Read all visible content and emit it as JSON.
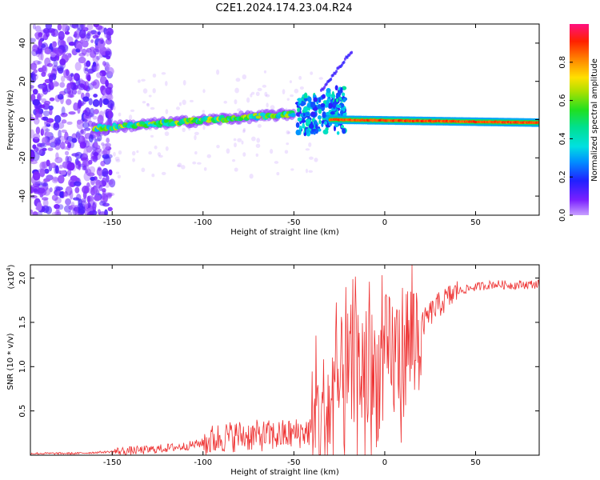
{
  "figure": {
    "title": "C2E1.2024.174.23.04.R24"
  },
  "chart_data": [
    {
      "type": "heatmap",
      "xlabel": "Height of straight line (km)",
      "ylabel": "Frequency (Hz)",
      "xlim": [
        -195,
        85
      ],
      "ylim": [
        -50,
        50
      ],
      "xticks": [
        -150,
        -100,
        -50,
        0,
        50
      ],
      "yticks": [
        -40,
        -20,
        0,
        20,
        40
      ],
      "colorbar": {
        "label": "Normalized spectral amplitude",
        "range": [
          0,
          1
        ],
        "ticks": [
          0.0,
          0.2,
          0.4,
          0.6,
          0.8
        ],
        "colormap": "rainbow (purple-blue-cyan-green-yellow-orange-red-pink)"
      },
      "features": [
        {
          "name": "noisy broadband region",
          "x": [
            -195,
            -150
          ],
          "y": [
            -50,
            50
          ],
          "level": 0.2
        },
        {
          "name": "main rising trace",
          "x": [
            -160,
            -50
          ],
          "y": [
            -5,
            3
          ],
          "level": 0.6
        },
        {
          "name": "fan region",
          "x": [
            -48,
            -22
          ],
          "y": [
            -8,
            12
          ],
          "level": 0.4
        },
        {
          "name": "weak rising branch",
          "x": [
            -35,
            -18
          ],
          "y": [
            15,
            36
          ],
          "level": 0.2
        },
        {
          "name": "flat strong trace",
          "x": [
            -30,
            85
          ],
          "y": [
            0,
            -2
          ],
          "level": 0.9
        }
      ],
      "grid": false
    },
    {
      "type": "line",
      "xlabel": "Height of straight line (km)",
      "ylabel": "SNR (10 * v/v)",
      "y_multiplier": "(x10^4)",
      "xlim": [
        -195,
        85
      ],
      "ylim": [
        0,
        2.15
      ],
      "xticks": [
        -150,
        -100,
        -50,
        0,
        50
      ],
      "yticks": [
        0.5,
        1.0,
        1.5,
        2.0
      ],
      "color": "#ee3333",
      "series": [
        {
          "x": [
            -195,
            -180,
            -170,
            -160,
            -150,
            -140,
            -130,
            -120,
            -110,
            -100,
            -90,
            -80,
            -70,
            -60,
            -50,
            -40,
            -35,
            -30,
            -25,
            -20,
            -15,
            -10,
            -5,
            0,
            5,
            10,
            15,
            20,
            25,
            30,
            35,
            40,
            50,
            60,
            70,
            80,
            85
          ],
          "values": [
            0.02,
            0.02,
            0.02,
            0.03,
            0.04,
            0.05,
            0.06,
            0.08,
            0.1,
            0.14,
            0.2,
            0.22,
            0.22,
            0.22,
            0.24,
            0.28,
            0.35,
            0.55,
            0.75,
            0.9,
            1.0,
            0.95,
            0.85,
            1.05,
            1.1,
            1.2,
            1.3,
            1.45,
            1.6,
            1.7,
            1.78,
            1.85,
            1.9,
            1.93,
            1.92,
            1.93,
            1.93
          ]
        }
      ],
      "grid": false
    }
  ]
}
